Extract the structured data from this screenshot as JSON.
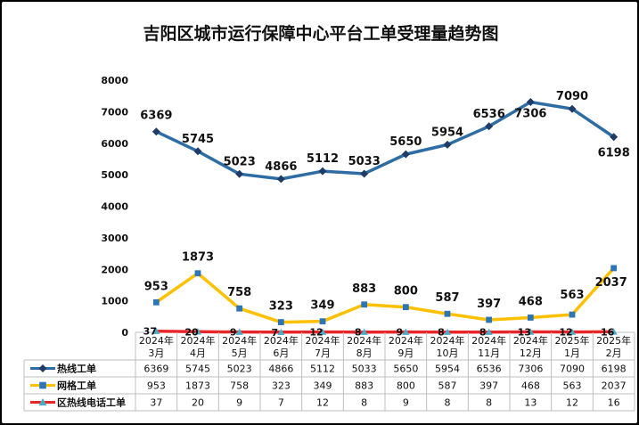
{
  "chart_data": {
    "type": "line",
    "title": "吉阳区城市运行保障中心平台工单受理量趋势图",
    "categories": [
      {
        "year": "2024年",
        "month": "3月"
      },
      {
        "year": "2024年",
        "month": "4月"
      },
      {
        "year": "2024年",
        "month": "5月"
      },
      {
        "year": "2024年",
        "month": "6月"
      },
      {
        "year": "2024年",
        "month": "7月"
      },
      {
        "year": "2024年",
        "month": "8月"
      },
      {
        "year": "2024年",
        "month": "9月"
      },
      {
        "year": "2024年",
        "month": "10月"
      },
      {
        "year": "2024年",
        "month": "11月"
      },
      {
        "year": "2024年",
        "month": "12月"
      },
      {
        "year": "2025年",
        "month": "1月"
      },
      {
        "year": "2025年",
        "month": "2月"
      }
    ],
    "ylim": [
      0,
      8000
    ],
    "yticks": [
      0,
      1000,
      2000,
      3000,
      4000,
      5000,
      6000,
      7000,
      8000
    ],
    "grid": false,
    "legend": "data-table",
    "series": [
      {
        "name": "热线工单",
        "color": "#2E6DA4",
        "marker": "diamond",
        "values": [
          6369,
          5745,
          5023,
          4866,
          5112,
          5033,
          5650,
          5954,
          6536,
          7306,
          7090,
          6198
        ]
      },
      {
        "name": "网格工单",
        "color": "#FFC000",
        "marker": "square",
        "values": [
          953,
          1873,
          758,
          323,
          349,
          883,
          800,
          587,
          397,
          468,
          563,
          2037
        ]
      },
      {
        "name": "区热线电话工单",
        "color": "#E8262A",
        "marker": "triangle",
        "values": [
          37,
          20,
          9,
          7,
          12,
          8,
          9,
          8,
          8,
          13,
          12,
          16
        ]
      }
    ]
  }
}
